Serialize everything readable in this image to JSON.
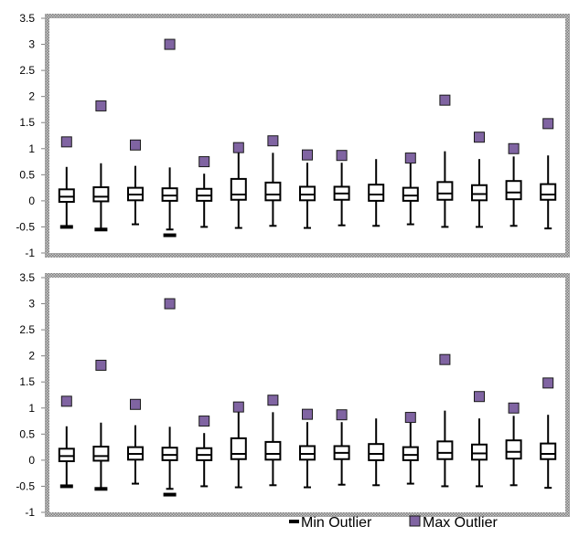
{
  "chart_data": [
    {
      "type": "box",
      "ylim": [
        -1,
        3.5
      ],
      "y_ticks": [
        "3.5",
        "3",
        "2.5",
        "2",
        "1.5",
        "1",
        "0.5",
        "0",
        "-0.5",
        "-1"
      ],
      "grid": false,
      "boxes": [
        {
          "whisker_low": -0.5,
          "q1": -0.02,
          "median": 0.08,
          "q3": 0.22,
          "whisker_high": 0.65,
          "min_outlier": -0.5,
          "max_outlier": 1.13
        },
        {
          "whisker_low": -0.55,
          "q1": -0.01,
          "median": 0.08,
          "q3": 0.26,
          "whisker_high": 0.72,
          "min_outlier": -0.55,
          "max_outlier": 1.82
        },
        {
          "whisker_low": -0.45,
          "q1": 0.01,
          "median": 0.12,
          "q3": 0.25,
          "whisker_high": 0.67,
          "min_outlier": null,
          "max_outlier": 1.07
        },
        {
          "whisker_low": -0.55,
          "q1": 0.0,
          "median": 0.1,
          "q3": 0.24,
          "whisker_high": 0.64,
          "min_outlier": -0.66,
          "max_outlier": 3.0
        },
        {
          "whisker_low": -0.5,
          "q1": 0.0,
          "median": 0.1,
          "q3": 0.23,
          "whisker_high": 0.52,
          "min_outlier": null,
          "max_outlier": 0.75
        },
        {
          "whisker_low": -0.52,
          "q1": 0.02,
          "median": 0.12,
          "q3": 0.42,
          "whisker_high": 0.92,
          "min_outlier": null,
          "max_outlier": 1.02
        },
        {
          "whisker_low": -0.48,
          "q1": 0.01,
          "median": 0.12,
          "q3": 0.35,
          "whisker_high": 0.92,
          "min_outlier": null,
          "max_outlier": 1.15
        },
        {
          "whisker_low": -0.52,
          "q1": 0.01,
          "median": 0.12,
          "q3": 0.27,
          "whisker_high": 0.73,
          "min_outlier": null,
          "max_outlier": 0.88
        },
        {
          "whisker_low": -0.47,
          "q1": 0.02,
          "median": 0.14,
          "q3": 0.27,
          "whisker_high": 0.73,
          "min_outlier": null,
          "max_outlier": 0.87
        },
        {
          "whisker_low": -0.48,
          "q1": 0.0,
          "median": 0.12,
          "q3": 0.31,
          "whisker_high": 0.8,
          "min_outlier": null,
          "max_outlier": null
        },
        {
          "whisker_low": -0.45,
          "q1": 0.0,
          "median": 0.1,
          "q3": 0.25,
          "whisker_high": 0.72,
          "min_outlier": null,
          "max_outlier": 0.82
        },
        {
          "whisker_low": -0.5,
          "q1": 0.02,
          "median": 0.14,
          "q3": 0.36,
          "whisker_high": 0.95,
          "min_outlier": null,
          "max_outlier": 1.93
        },
        {
          "whisker_low": -0.5,
          "q1": 0.01,
          "median": 0.13,
          "q3": 0.3,
          "whisker_high": 0.8,
          "min_outlier": null,
          "max_outlier": 1.22
        },
        {
          "whisker_low": -0.48,
          "q1": 0.03,
          "median": 0.16,
          "q3": 0.38,
          "whisker_high": 0.85,
          "min_outlier": null,
          "max_outlier": 1.0
        },
        {
          "whisker_low": -0.53,
          "q1": 0.02,
          "median": 0.12,
          "q3": 0.32,
          "whisker_high": 0.87,
          "min_outlier": null,
          "max_outlier": 1.48
        }
      ]
    },
    {
      "type": "box",
      "ylim": [
        -1,
        3.5
      ],
      "y_ticks": [
        "3.5",
        "3",
        "2.5",
        "2",
        "1.5",
        "1",
        "0.5",
        "0",
        "-0.5",
        "-1"
      ],
      "grid": false,
      "boxes": [
        {
          "whisker_low": -0.5,
          "q1": -0.02,
          "median": 0.08,
          "q3": 0.22,
          "whisker_high": 0.65,
          "min_outlier": -0.5,
          "max_outlier": 1.13
        },
        {
          "whisker_low": -0.55,
          "q1": -0.01,
          "median": 0.08,
          "q3": 0.26,
          "whisker_high": 0.72,
          "min_outlier": -0.55,
          "max_outlier": 1.82
        },
        {
          "whisker_low": -0.45,
          "q1": 0.01,
          "median": 0.12,
          "q3": 0.25,
          "whisker_high": 0.67,
          "min_outlier": null,
          "max_outlier": 1.07
        },
        {
          "whisker_low": -0.55,
          "q1": 0.0,
          "median": 0.1,
          "q3": 0.24,
          "whisker_high": 0.64,
          "min_outlier": -0.66,
          "max_outlier": 3.0
        },
        {
          "whisker_low": -0.5,
          "q1": 0.0,
          "median": 0.1,
          "q3": 0.23,
          "whisker_high": 0.52,
          "min_outlier": null,
          "max_outlier": 0.75
        },
        {
          "whisker_low": -0.52,
          "q1": 0.02,
          "median": 0.12,
          "q3": 0.42,
          "whisker_high": 0.92,
          "min_outlier": null,
          "max_outlier": 1.02
        },
        {
          "whisker_low": -0.48,
          "q1": 0.01,
          "median": 0.12,
          "q3": 0.35,
          "whisker_high": 0.92,
          "min_outlier": null,
          "max_outlier": 1.15
        },
        {
          "whisker_low": -0.52,
          "q1": 0.01,
          "median": 0.12,
          "q3": 0.27,
          "whisker_high": 0.73,
          "min_outlier": null,
          "max_outlier": 0.88
        },
        {
          "whisker_low": -0.47,
          "q1": 0.02,
          "median": 0.14,
          "q3": 0.27,
          "whisker_high": 0.73,
          "min_outlier": null,
          "max_outlier": 0.87
        },
        {
          "whisker_low": -0.48,
          "q1": 0.0,
          "median": 0.12,
          "q3": 0.31,
          "whisker_high": 0.8,
          "min_outlier": null,
          "max_outlier": null
        },
        {
          "whisker_low": -0.45,
          "q1": 0.0,
          "median": 0.1,
          "q3": 0.25,
          "whisker_high": 0.72,
          "min_outlier": null,
          "max_outlier": 0.82
        },
        {
          "whisker_low": -0.5,
          "q1": 0.02,
          "median": 0.14,
          "q3": 0.36,
          "whisker_high": 0.95,
          "min_outlier": null,
          "max_outlier": 1.93
        },
        {
          "whisker_low": -0.5,
          "q1": 0.01,
          "median": 0.13,
          "q3": 0.3,
          "whisker_high": 0.8,
          "min_outlier": null,
          "max_outlier": 1.22
        },
        {
          "whisker_low": -0.48,
          "q1": 0.03,
          "median": 0.16,
          "q3": 0.38,
          "whisker_high": 0.85,
          "min_outlier": null,
          "max_outlier": 1.0
        },
        {
          "whisker_low": -0.53,
          "q1": 0.02,
          "median": 0.12,
          "q3": 0.32,
          "whisker_high": 0.87,
          "min_outlier": null,
          "max_outlier": 1.48
        }
      ]
    }
  ],
  "legend": {
    "position": "bottom",
    "min_label": "Min Outlier",
    "max_label": "Max Outlier"
  },
  "colors": {
    "max_outlier_fill": "#8064a2",
    "max_outlier_stroke": "#1a1a1a",
    "box_stroke": "#000000",
    "frame_border": "#9a9a9a"
  }
}
